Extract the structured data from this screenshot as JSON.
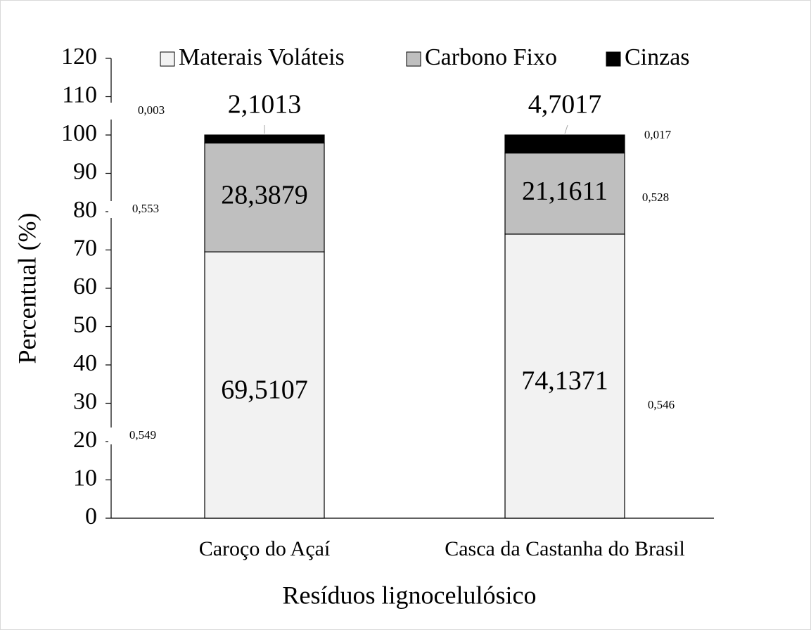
{
  "chart_data": {
    "type": "stacked_bar",
    "x_label": "Resíduos lignocelulósico",
    "y_label": "Percentual (%)",
    "categories": [
      "Caroço do Açaí",
      "Casca da Castanha do Brasil"
    ],
    "series": [
      {
        "name": "Materais Voláteis",
        "color": "#f2f2f2",
        "values": [
          69.5107,
          74.1371
        ],
        "value_labels": [
          "69,5107",
          "74,1371"
        ]
      },
      {
        "name": "Carbono Fixo",
        "color": "#bfbfbf",
        "values": [
          28.3879,
          21.1611
        ],
        "value_labels": [
          "28,3879",
          "21,1611"
        ]
      },
      {
        "name": "Cinzas",
        "color": "#000000",
        "values": [
          2.1013,
          4.7017
        ],
        "value_labels": [
          "2,1013",
          "4,7017"
        ]
      }
    ],
    "ylim": [
      0,
      120
    ],
    "yticks": [
      0,
      10,
      20,
      30,
      40,
      50,
      60,
      70,
      80,
      90,
      100,
      110,
      120
    ],
    "legend": "top",
    "annotations": [
      "0,003",
      "0,553",
      "0,549",
      "0,017",
      "0,528",
      "0,546"
    ]
  }
}
